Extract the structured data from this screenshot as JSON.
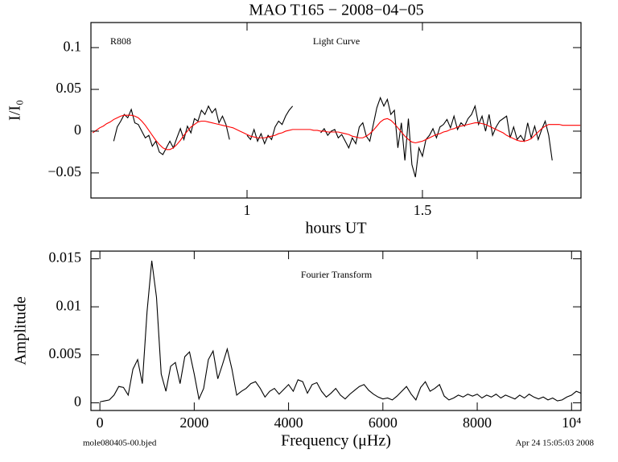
{
  "chart_data": [
    {
      "type": "line",
      "title": "MAO T165 − 2008−04−05",
      "annotations": [
        "R808",
        "Light Curve"
      ],
      "xlabel": "hours UT",
      "ylabel": "I/I₀",
      "xlim": [
        0.555,
        1.952
      ],
      "ylim": [
        -0.08,
        0.13
      ],
      "xticks": [
        1,
        1.5
      ],
      "yticks": [
        {
          "value": -0.05,
          "label": "−0.05"
        },
        0,
        0.05,
        0.1
      ],
      "x": [
        0.56,
        0.57,
        0.58,
        0.59,
        0.6,
        0.61,
        0.62,
        0.63,
        0.64,
        0.65,
        0.66,
        0.67,
        0.68,
        0.69,
        0.7,
        0.71,
        0.72,
        0.73,
        0.74,
        0.75,
        0.76,
        0.77,
        0.78,
        0.79,
        0.8,
        0.81,
        0.82,
        0.83,
        0.84,
        0.85,
        0.86,
        0.87,
        0.88,
        0.89,
        0.9,
        0.91,
        0.92,
        0.93,
        0.94,
        0.95,
        0.96,
        0.97,
        0.98,
        0.99,
        1.0,
        1.01,
        1.02,
        1.03,
        1.04,
        1.05,
        1.06,
        1.07,
        1.08,
        1.09,
        1.1,
        1.11,
        1.12,
        1.13,
        1.14,
        1.15,
        1.16,
        1.17,
        1.18,
        1.19,
        1.2,
        1.21,
        1.22,
        1.23,
        1.24,
        1.25,
        1.26,
        1.27,
        1.28,
        1.29,
        1.3,
        1.31,
        1.32,
        1.33,
        1.34,
        1.35,
        1.36,
        1.37,
        1.38,
        1.39,
        1.4,
        1.41,
        1.42,
        1.43,
        1.44,
        1.45,
        1.46,
        1.47,
        1.48,
        1.49,
        1.5,
        1.51,
        1.52,
        1.53,
        1.54,
        1.55,
        1.56,
        1.57,
        1.58,
        1.59,
        1.6,
        1.61,
        1.62,
        1.63,
        1.64,
        1.65,
        1.66,
        1.67,
        1.68,
        1.69,
        1.7,
        1.71,
        1.72,
        1.73,
        1.74,
        1.75,
        1.76,
        1.77,
        1.78,
        1.79,
        1.8,
        1.81,
        1.82,
        1.83,
        1.84,
        1.85,
        1.86,
        1.87,
        1.88,
        1.89,
        1.9,
        1.91,
        1.92,
        1.93,
        1.94,
        1.95
      ],
      "series": [
        {
          "color": "#000000",
          "values": [
            null,
            null,
            null,
            null,
            null,
            null,
            -0.012,
            0.005,
            0.012,
            0.02,
            0.016,
            0.026,
            0.01,
            0.008,
            0.0,
            -0.008,
            -0.005,
            -0.018,
            -0.012,
            -0.025,
            -0.028,
            -0.02,
            -0.012,
            -0.02,
            -0.008,
            0.003,
            -0.01,
            0.006,
            -0.002,
            0.015,
            0.012,
            0.025,
            0.02,
            0.03,
            0.022,
            0.027,
            0.01,
            0.018,
            0.008,
            -0.01,
            null,
            null,
            null,
            null,
            -0.005,
            -0.01,
            0.002,
            -0.012,
            -0.003,
            -0.015,
            -0.005,
            -0.01,
            0.005,
            0.012,
            0.008,
            0.018,
            0.025,
            0.03,
            null,
            null,
            null,
            null,
            null,
            null,
            null,
            -0.002,
            0.003,
            -0.005,
            0.0,
            0.002,
            -0.008,
            -0.004,
            -0.012,
            -0.02,
            -0.008,
            -0.015,
            0.005,
            0.01,
            -0.006,
            -0.012,
            0.008,
            0.028,
            0.04,
            0.03,
            0.038,
            0.02,
            0.025,
            -0.02,
            0.01,
            -0.035,
            0.015,
            -0.04,
            -0.055,
            -0.02,
            -0.03,
            -0.01,
            -0.005,
            0.003,
            -0.008,
            0.005,
            0.008,
            0.014,
            0.004,
            0.018,
            0.002,
            0.01,
            0.006,
            0.015,
            0.02,
            0.03,
            0.008,
            0.018,
            0.0,
            0.02,
            -0.005,
            0.005,
            0.012,
            0.015,
            0.018,
            -0.008,
            0.005,
            -0.01,
            -0.005,
            -0.012,
            0.01,
            -0.008,
            0.006,
            -0.01,
            0.002,
            0.012,
            -0.005,
            -0.035,
            null,
            null,
            null,
            null,
            null,
            null,
            null,
            null
          ]
        },
        {
          "color": "#ff0000",
          "values": [
            -0.002,
            0.001,
            0.004,
            0.006,
            0.009,
            0.011,
            0.014,
            0.016,
            0.018,
            0.019,
            0.019,
            0.019,
            0.018,
            0.016,
            0.012,
            0.007,
            0.001,
            -0.005,
            -0.011,
            -0.016,
            -0.02,
            -0.022,
            -0.022,
            -0.02,
            -0.016,
            -0.011,
            -0.005,
            0.0,
            0.005,
            0.008,
            0.011,
            0.012,
            0.012,
            0.011,
            0.01,
            0.009,
            0.008,
            0.007,
            0.006,
            0.005,
            0.004,
            0.002,
            0.0,
            -0.002,
            -0.004,
            -0.006,
            -0.007,
            -0.008,
            -0.008,
            -0.008,
            -0.007,
            -0.006,
            -0.005,
            -0.003,
            -0.002,
            0.0,
            0.001,
            0.002,
            0.002,
            0.002,
            0.002,
            0.002,
            0.002,
            0.001,
            0.001,
            0.0,
            0.0,
            -0.001,
            -0.001,
            -0.001,
            -0.001,
            -0.002,
            -0.003,
            -0.004,
            -0.006,
            -0.007,
            -0.008,
            -0.008,
            -0.006,
            -0.003,
            0.001,
            0.006,
            0.011,
            0.014,
            0.015,
            0.013,
            0.009,
            0.004,
            -0.001,
            -0.006,
            -0.01,
            -0.013,
            -0.014,
            -0.013,
            -0.012,
            -0.01,
            -0.008,
            -0.006,
            -0.004,
            -0.003,
            -0.001,
            0.0,
            0.002,
            0.003,
            0.005,
            0.006,
            0.007,
            0.008,
            0.009,
            0.01,
            0.01,
            0.009,
            0.008,
            0.006,
            0.004,
            0.002,
            0.0,
            -0.002,
            -0.005,
            -0.007,
            -0.009,
            -0.011,
            -0.012,
            -0.012,
            -0.011,
            -0.009,
            -0.005,
            -0.001,
            0.003,
            0.006,
            0.008,
            0.008,
            0.008,
            0.008,
            0.007,
            0.007,
            0.007,
            0.007,
            0.007,
            0.007
          ]
        }
      ]
    },
    {
      "type": "line",
      "annotations": [
        "Fourier Transform"
      ],
      "xlabel": "Frequency (μHz)",
      "ylabel": "Amplitude",
      "xlim": [
        -190,
        10200
      ],
      "ylim": [
        -0.0008,
        0.0158
      ],
      "xticks": [
        0,
        2000,
        4000,
        6000,
        8000,
        {
          "value": 10000,
          "label": "10⁴"
        }
      ],
      "yticks": [
        0,
        0.005,
        0.01,
        0.015
      ],
      "x": [
        0,
        100,
        200,
        300,
        400,
        500,
        600,
        700,
        800,
        900,
        1000,
        1100,
        1200,
        1300,
        1400,
        1500,
        1600,
        1700,
        1800,
        1900,
        2000,
        2100,
        2200,
        2300,
        2400,
        2500,
        2600,
        2700,
        2800,
        2900,
        3000,
        3100,
        3200,
        3300,
        3400,
        3500,
        3600,
        3700,
        3800,
        3900,
        4000,
        4100,
        4200,
        4300,
        4400,
        4500,
        4600,
        4700,
        4800,
        4900,
        5000,
        5100,
        5200,
        5300,
        5400,
        5500,
        5600,
        5700,
        5800,
        5900,
        6000,
        6100,
        6200,
        6300,
        6400,
        6500,
        6600,
        6700,
        6800,
        6900,
        7000,
        7100,
        7200,
        7300,
        7400,
        7500,
        7600,
        7700,
        7800,
        7900,
        8000,
        8100,
        8200,
        8300,
        8400,
        8500,
        8600,
        8700,
        8800,
        8900,
        9000,
        9100,
        9200,
        9300,
        9400,
        9500,
        9600,
        9700,
        9800,
        9900,
        10000,
        10100,
        10200
      ],
      "series": [
        {
          "color": "#000000",
          "values": [
            0.0001,
            0.0002,
            0.0003,
            0.0008,
            0.0017,
            0.0016,
            0.0008,
            0.0035,
            0.0045,
            0.002,
            0.0095,
            0.0148,
            0.011,
            0.003,
            0.0012,
            0.0038,
            0.0042,
            0.002,
            0.0048,
            0.0053,
            0.003,
            0.0004,
            0.0015,
            0.0045,
            0.0054,
            0.0025,
            0.004,
            0.0056,
            0.0035,
            0.0008,
            0.0012,
            0.0015,
            0.002,
            0.0022,
            0.0015,
            0.0006,
            0.0012,
            0.0015,
            0.0009,
            0.0014,
            0.0019,
            0.0012,
            0.0024,
            0.0022,
            0.001,
            0.0019,
            0.0021,
            0.0012,
            0.0006,
            0.001,
            0.0015,
            0.0008,
            0.0004,
            0.0009,
            0.0013,
            0.0017,
            0.0019,
            0.0013,
            0.0009,
            0.0006,
            0.0004,
            0.0005,
            0.0003,
            0.0007,
            0.0012,
            0.0017,
            0.0009,
            0.0003,
            0.0016,
            0.0022,
            0.0012,
            0.0015,
            0.0019,
            0.0007,
            0.0003,
            0.0005,
            0.0008,
            0.0006,
            0.0009,
            0.0007,
            0.0009,
            0.0005,
            0.0008,
            0.0006,
            0.0009,
            0.0005,
            0.0008,
            0.0006,
            0.0004,
            0.0008,
            0.0005,
            0.0009,
            0.0006,
            0.0004,
            0.0006,
            0.0003,
            0.0005,
            0.0002,
            0.0003,
            0.0006,
            0.0008,
            0.0012,
            0.001
          ]
        }
      ]
    }
  ],
  "footer": {
    "left": "mole080405-00.bjed",
    "right": "Apr 24 15:05:03 2008"
  }
}
